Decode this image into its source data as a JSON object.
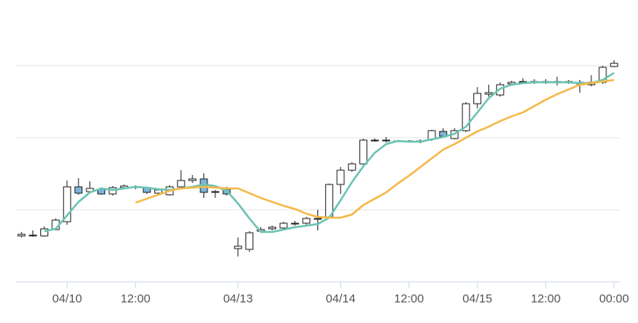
{
  "chart_data": {
    "type": "candlestick",
    "categories": [
      null,
      null,
      null,
      null,
      "04/10",
      null,
      null,
      null,
      null,
      null,
      "12:00",
      null,
      null,
      null,
      null,
      null,
      null,
      null,
      null,
      "04/13",
      null,
      null,
      null,
      null,
      null,
      null,
      null,
      null,
      "04/14",
      null,
      null,
      null,
      null,
      null,
      "12:00",
      null,
      null,
      null,
      null,
      null,
      "04/15",
      null,
      null,
      null,
      null,
      null,
      "12:00",
      null,
      null,
      null,
      null,
      null,
      "00:00"
    ],
    "open": [
      58,
      59,
      58,
      66,
      76,
      120,
      114,
      117,
      111,
      119,
      120,
      119,
      112,
      110,
      120,
      128,
      130,
      113,
      117,
      42,
      41,
      64,
      67,
      68,
      73,
      74,
      80,
      82,
      123,
      141,
      149,
      179,
      178,
      178,
      178,
      177,
      180,
      190,
      181,
      191,
      225,
      237,
      236,
      250,
      252,
      253,
      252,
      252,
      252,
      250,
      249,
      252,
      272
    ],
    "high": [
      63,
      65,
      70,
      80,
      128,
      131,
      127,
      118,
      121,
      123,
      122,
      120,
      118,
      122,
      141,
      135,
      137,
      116,
      120,
      56,
      64,
      69,
      71,
      76,
      77,
      82,
      91,
      124,
      145,
      151,
      181,
      181,
      183,
      179,
      179,
      180,
      192,
      194,
      194,
      227,
      246,
      249,
      252,
      254,
      257,
      256,
      256,
      259,
      255,
      255,
      261,
      273,
      280
    ],
    "low": [
      56,
      57,
      57,
      65,
      72,
      110,
      112,
      110,
      109,
      117,
      117,
      111,
      109,
      109,
      118,
      125,
      106,
      106,
      109,
      32,
      38,
      62,
      65,
      66,
      71,
      72,
      65,
      80,
      111,
      139,
      148,
      177,
      176,
      177,
      176,
      175,
      178,
      182,
      180,
      189,
      219,
      234,
      234,
      248,
      250,
      250,
      250,
      248,
      250,
      239,
      247,
      250,
      271
    ],
    "close": [
      60,
      59,
      67,
      78,
      120,
      112,
      118,
      111,
      119,
      121,
      120,
      113,
      116,
      120,
      128,
      130,
      113,
      114,
      111,
      45,
      62,
      66,
      69,
      74,
      74,
      80,
      80,
      123,
      141,
      149,
      179,
      179,
      179,
      178,
      178,
      178,
      191,
      184,
      191,
      225,
      238,
      239,
      249,
      252,
      253,
      253,
      253,
      253,
      253,
      252,
      252,
      271,
      276
    ],
    "up_color": "#ffffff",
    "down_color": "#7cb5dc",
    "series": [
      {
        "type": "line",
        "color": "#6cc3b3",
        "values": [
          null,
          null,
          64,
          67,
          84,
          101,
          113,
          118,
          116,
          118,
          120,
          119,
          117,
          116,
          118,
          120,
          123,
          121,
          115,
          99,
          80,
          63,
          63,
          66,
          69,
          71,
          73,
          81,
          103,
          126,
          146,
          163,
          174,
          178,
          177,
          177,
          180,
          183,
          187,
          196,
          214,
          232,
          244,
          249,
          251,
          252,
          252,
          252,
          252,
          251,
          251,
          255,
          264
        ]
      },
      {
        "type": "line",
        "color": "#f5b94a",
        "values": [
          null,
          null,
          null,
          null,
          null,
          null,
          null,
          null,
          null,
          null,
          100,
          105,
          110,
          115,
          118,
          119,
          120,
          119,
          118,
          118,
          112,
          106,
          101,
          96,
          92,
          86,
          82,
          81,
          81,
          85,
          97,
          105,
          113,
          124,
          134,
          145,
          156,
          167,
          174,
          182,
          190,
          196,
          203,
          209,
          214,
          222,
          230,
          237,
          243,
          249,
          251,
          253,
          255
        ]
      }
    ],
    "ylim": [
      0,
      355
    ],
    "yticks": [
      91,
      182,
      273
    ],
    "grid": true
  }
}
